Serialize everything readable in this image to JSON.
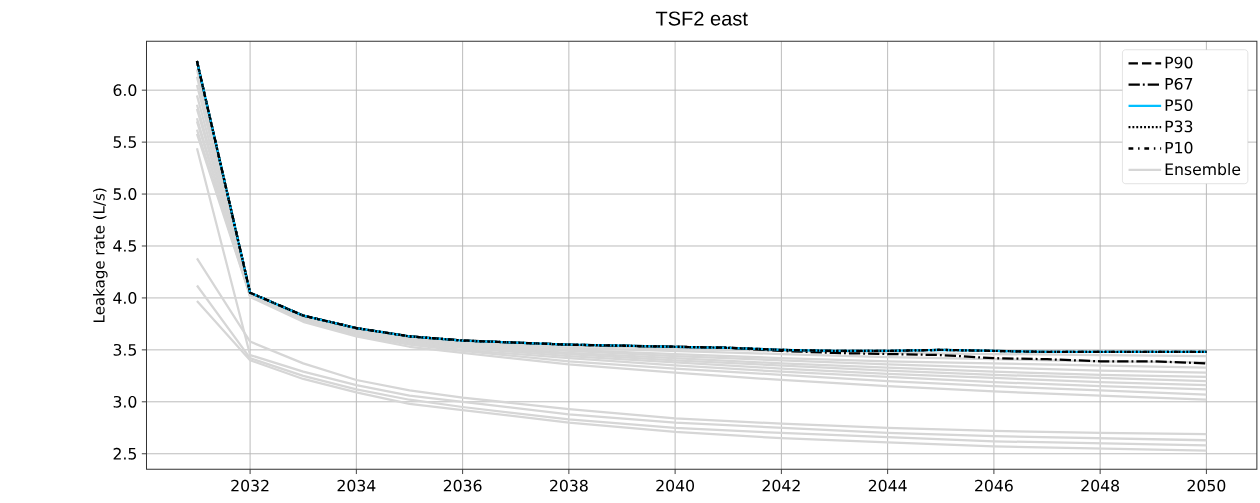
{
  "chart_data": {
    "type": "line",
    "title": "TSF2 east",
    "ylabel": "Leakage rate (L/s)",
    "x": [
      2031,
      2032,
      2033,
      2034,
      2035,
      2036,
      2037,
      2038,
      2039,
      2040,
      2041,
      2042,
      2043,
      2044,
      2045,
      2046,
      2047,
      2048,
      2049,
      2050
    ],
    "xlim": [
      2030.05,
      2050.95
    ],
    "ylim": [
      2.35,
      6.47
    ],
    "xticks": [
      2032,
      2034,
      2036,
      2038,
      2040,
      2042,
      2044,
      2046,
      2048,
      2050
    ],
    "yticks": [
      2.5,
      {
        "value": 3.0,
        "label": "3.0"
      },
      3.5,
      {
        "value": 4.0,
        "label": "4.0"
      },
      4.5,
      {
        "value": 5.0,
        "label": "5.0"
      },
      5.5,
      {
        "value": 6.0,
        "label": "6.0"
      }
    ],
    "grid": true,
    "legend": "top right",
    "series": [
      {
        "name": "P90",
        "color": "#000000",
        "line_style": "dashed",
        "values": [
          6.28,
          4.05,
          3.83,
          3.71,
          3.63,
          3.59,
          3.57,
          3.55,
          3.54,
          3.53,
          3.52,
          3.5,
          3.49,
          3.49,
          3.5,
          3.49,
          3.48,
          3.48,
          3.48,
          3.48
        ]
      },
      {
        "name": "P67",
        "color": "#000000",
        "line_style": "dashdot",
        "values": [
          6.28,
          4.05,
          3.83,
          3.71,
          3.63,
          3.59,
          3.57,
          3.55,
          3.54,
          3.53,
          3.52,
          3.49,
          3.47,
          3.46,
          3.45,
          3.42,
          3.41,
          3.39,
          3.39,
          3.37
        ]
      },
      {
        "name": "P50",
        "color": "#00bfff",
        "line_style": "solid",
        "values": [
          6.28,
          4.05,
          3.83,
          3.71,
          3.63,
          3.59,
          3.57,
          3.55,
          3.54,
          3.53,
          3.52,
          3.5,
          3.49,
          3.49,
          3.5,
          3.49,
          3.48,
          3.48,
          3.48,
          3.48
        ]
      },
      {
        "name": "P33",
        "color": "#000000",
        "line_style": "dotted",
        "values": [
          6.28,
          4.05,
          3.83,
          3.71,
          3.63,
          3.59,
          3.57,
          3.55,
          3.54,
          3.53,
          3.52,
          3.5,
          3.49,
          3.49,
          3.5,
          3.49,
          3.48,
          3.48,
          3.48,
          3.48
        ]
      },
      {
        "name": "P10",
        "color": "#000000",
        "line_style": "loosely dashdot",
        "values": [
          6.28,
          4.05,
          3.83,
          3.71,
          3.63,
          3.59,
          3.57,
          3.55,
          3.54,
          3.53,
          3.52,
          3.5,
          3.49,
          3.49,
          3.5,
          3.49,
          3.48,
          3.48,
          3.48,
          3.48
        ]
      },
      {
        "name": "Ensemble",
        "color": "#d6d6d6",
        "line_style": "solid",
        "x": [
          2031,
          2032,
          2033,
          2034,
          2035,
          2036,
          2038,
          2040,
          2042,
          2044,
          2046,
          2048,
          2050
        ],
        "values": [
          4.38,
          3.58,
          3.37,
          3.21,
          3.11,
          3.04,
          2.93,
          2.84,
          2.79,
          2.75,
          2.72,
          2.7,
          2.69
        ]
      },
      {
        "color": "#d6d6d6",
        "line_style": "solid",
        "x": [
          2031,
          2032,
          2033,
          2034,
          2035,
          2036,
          2038,
          2040,
          2042,
          2044,
          2046,
          2048,
          2050
        ],
        "values": [
          5.44,
          3.45,
          3.29,
          3.16,
          3.06,
          3.0,
          2.88,
          2.8,
          2.75,
          2.7,
          2.67,
          2.65,
          2.63
        ]
      },
      {
        "color": "#d6d6d6",
        "line_style": "solid",
        "x": [
          2031,
          2032,
          2033,
          2034,
          2035,
          2036,
          2038,
          2040,
          2042,
          2044,
          2046,
          2048,
          2050
        ],
        "values": [
          4.12,
          3.42,
          3.25,
          3.12,
          3.02,
          2.95,
          2.83,
          2.75,
          2.7,
          2.66,
          2.62,
          2.6,
          2.58
        ]
      },
      {
        "color": "#d6d6d6",
        "line_style": "solid",
        "x": [
          2031,
          2032,
          2033,
          2034,
          2035,
          2036,
          2038,
          2040,
          2042,
          2044,
          2046,
          2048,
          2050
        ],
        "values": [
          3.97,
          3.4,
          3.22,
          3.09,
          2.98,
          2.92,
          2.8,
          2.71,
          2.65,
          2.61,
          2.57,
          2.55,
          2.53
        ]
      },
      {
        "color": "#d6d6d6",
        "line_style": "solid",
        "x": [
          2031,
          2032,
          2033,
          2034,
          2035,
          2036,
          2038,
          2040,
          2042,
          2044,
          2046,
          2048,
          2050
        ],
        "values": [
          6.13,
          4.05,
          3.83,
          3.7,
          3.62,
          3.58,
          3.54,
          3.51,
          3.49,
          3.47,
          3.46,
          3.45,
          3.44
        ]
      },
      {
        "color": "#d6d6d6",
        "line_style": "solid",
        "x": [
          2031,
          2032,
          2033,
          2034,
          2035,
          2036,
          2038,
          2040,
          2042,
          2044,
          2046,
          2048,
          2050
        ],
        "values": [
          6.05,
          4.04,
          3.82,
          3.7,
          3.62,
          3.57,
          3.52,
          3.49,
          3.46,
          3.43,
          3.41,
          3.39,
          3.38
        ]
      },
      {
        "color": "#d6d6d6",
        "line_style": "solid",
        "x": [
          2031,
          2032,
          2033,
          2034,
          2035,
          2036,
          2038,
          2040,
          2042,
          2044,
          2046,
          2048,
          2050
        ],
        "values": [
          5.95,
          4.04,
          3.82,
          3.69,
          3.61,
          3.56,
          3.5,
          3.46,
          3.42,
          3.39,
          3.37,
          3.35,
          3.33
        ]
      },
      {
        "color": "#d6d6d6",
        "line_style": "solid",
        "x": [
          2031,
          2032,
          2033,
          2034,
          2035,
          2036,
          2038,
          2040,
          2042,
          2044,
          2046,
          2048,
          2050
        ],
        "values": [
          5.86,
          4.03,
          3.81,
          3.68,
          3.6,
          3.55,
          3.49,
          3.44,
          3.4,
          3.36,
          3.33,
          3.3,
          3.28
        ]
      },
      {
        "color": "#d6d6d6",
        "line_style": "solid",
        "x": [
          2031,
          2032,
          2033,
          2034,
          2035,
          2036,
          2038,
          2040,
          2042,
          2044,
          2046,
          2048,
          2050
        ],
        "values": [
          5.82,
          4.03,
          3.8,
          3.67,
          3.59,
          3.54,
          3.47,
          3.42,
          3.37,
          3.33,
          3.29,
          3.26,
          3.24
        ]
      },
      {
        "color": "#d6d6d6",
        "line_style": "solid",
        "x": [
          2031,
          2032,
          2033,
          2034,
          2035,
          2036,
          2038,
          2040,
          2042,
          2044,
          2046,
          2048,
          2050
        ],
        "values": [
          5.73,
          4.03,
          3.8,
          3.67,
          3.58,
          3.53,
          3.46,
          3.4,
          3.35,
          3.3,
          3.26,
          3.23,
          3.2
        ]
      },
      {
        "color": "#d6d6d6",
        "line_style": "solid",
        "x": [
          2031,
          2032,
          2033,
          2034,
          2035,
          2036,
          2038,
          2040,
          2042,
          2044,
          2046,
          2048,
          2050
        ],
        "values": [
          5.7,
          4.02,
          3.79,
          3.66,
          3.57,
          3.52,
          3.44,
          3.38,
          3.32,
          3.27,
          3.23,
          3.19,
          3.16
        ]
      },
      {
        "color": "#d6d6d6",
        "line_style": "solid",
        "x": [
          2031,
          2032,
          2033,
          2034,
          2035,
          2036,
          2038,
          2040,
          2042,
          2044,
          2046,
          2048,
          2050
        ],
        "values": [
          5.62,
          4.02,
          3.79,
          3.65,
          3.56,
          3.5,
          3.42,
          3.35,
          3.29,
          3.24,
          3.19,
          3.15,
          3.12
        ]
      },
      {
        "color": "#d6d6d6",
        "line_style": "solid",
        "x": [
          2031,
          2032,
          2033,
          2034,
          2035,
          2036,
          2038,
          2040,
          2042,
          2044,
          2046,
          2048,
          2050
        ],
        "values": [
          5.58,
          4.02,
          3.78,
          3.64,
          3.55,
          3.49,
          3.39,
          3.32,
          3.26,
          3.2,
          3.15,
          3.11,
          3.07
        ]
      },
      {
        "color": "#d6d6d6",
        "line_style": "solid",
        "x": [
          2031,
          2032,
          2033,
          2034,
          2035,
          2036,
          2038,
          2040,
          2042,
          2044,
          2046,
          2048,
          2050
        ],
        "values": [
          6.2,
          4.01,
          3.77,
          3.63,
          3.53,
          3.47,
          3.36,
          3.28,
          3.21,
          3.15,
          3.1,
          3.06,
          3.02
        ]
      }
    ]
  }
}
